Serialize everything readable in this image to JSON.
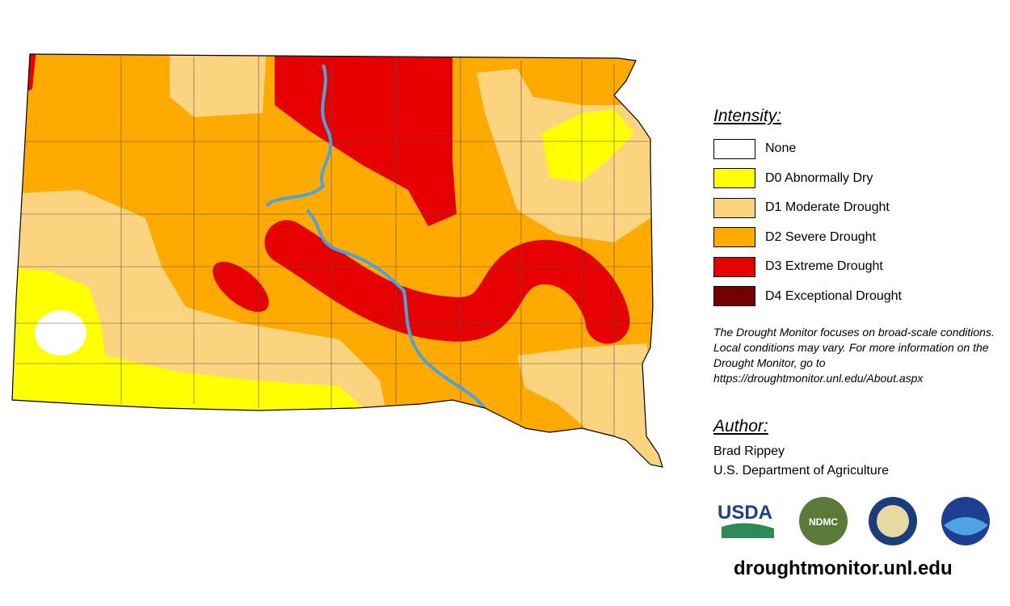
{
  "legend": {
    "title": "Intensity:",
    "items": [
      {
        "label": "None",
        "color": "#ffffff"
      },
      {
        "label": "D0 Abnormally Dry",
        "color": "#ffff00"
      },
      {
        "label": "D1 Moderate Drought",
        "color": "#fcd37f"
      },
      {
        "label": "D2 Severe Drought",
        "color": "#ffaa00"
      },
      {
        "label": "D3 Extreme Drought",
        "color": "#e60000"
      },
      {
        "label": "D4 Exceptional Drought",
        "color": "#730000"
      }
    ]
  },
  "note": "The Drought Monitor focuses on broad-scale conditions. Local conditions may vary. For more information on the Drought Monitor, go to https://droughtmonitor.unl.edu/About.aspx",
  "author": {
    "heading": "Author:",
    "name": "Brad Rippey",
    "organization": "U.S. Department of Agriculture"
  },
  "logos": [
    "USDA",
    "NDMC"
  ],
  "url": "droughtmonitor.unl.edu"
}
